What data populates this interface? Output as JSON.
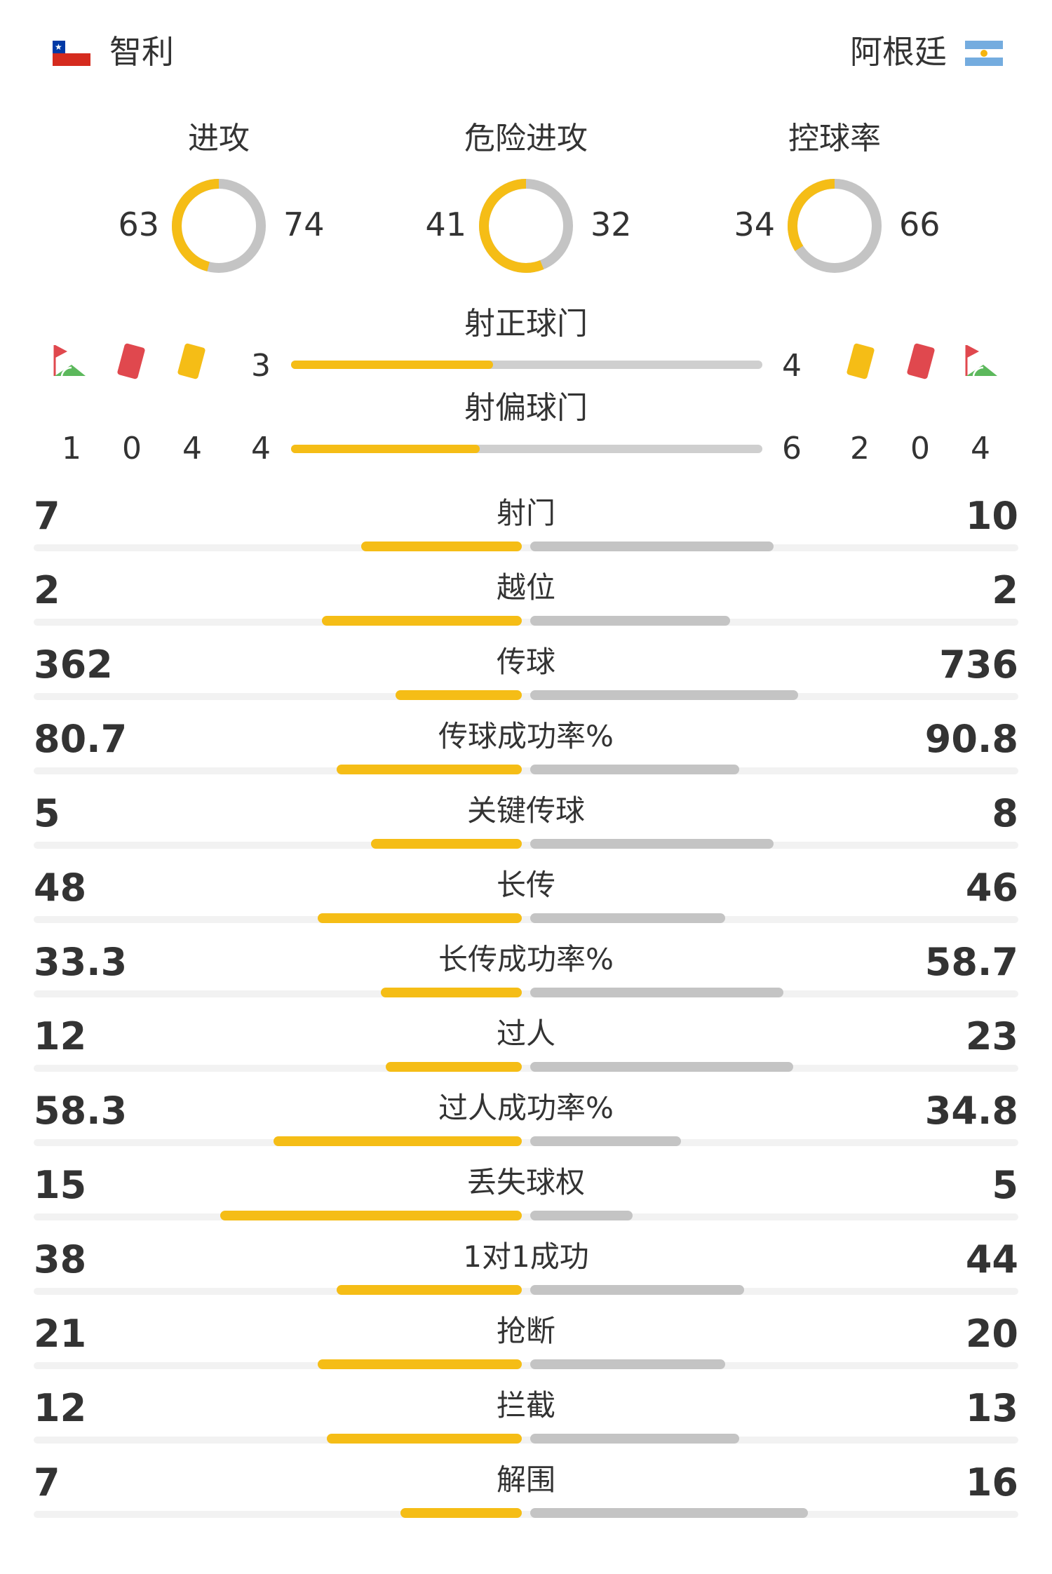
{
  "header": {
    "home_team": "智利",
    "away_team": "阿根廷"
  },
  "donuts": [
    {
      "title": "进攻",
      "home": "63",
      "away": "74",
      "home_value": 63,
      "away_value": 74
    },
    {
      "title": "危险进攻",
      "home": "41",
      "away": "32",
      "home_value": 41,
      "away_value": 32
    },
    {
      "title": "控球率",
      "home": "34",
      "away": "66",
      "home_value": 34,
      "away_value": 66
    }
  ],
  "shots": {
    "on_target": {
      "title": "射正球门",
      "home": "3",
      "away": "4",
      "home_value": 3,
      "away_value": 4
    },
    "off_target": {
      "title": "射偏球门",
      "home": "4",
      "away": "6",
      "home_value": 4,
      "away_value": 6
    }
  },
  "events": {
    "home": {
      "corners": "1",
      "red_cards": "0",
      "yellow_cards": "4"
    },
    "away": {
      "yellow_cards": "2",
      "red_cards": "0",
      "corners": "4"
    }
  },
  "icons": [
    "corner-flag-icon",
    "red-card-icon",
    "yellow-card-icon"
  ],
  "colors": {
    "home": "#f5bd16",
    "away": "#c4c4c4"
  },
  "stats": [
    {
      "label": "射门",
      "home": "7",
      "away": "10",
      "home_bar": 0.33,
      "away_bar": 0.5
    },
    {
      "label": "越位",
      "home": "2",
      "away": "2",
      "home_bar": 0.41,
      "away_bar": 0.41
    },
    {
      "label": "传球",
      "home": "362",
      "away": "736",
      "home_bar": 0.26,
      "away_bar": 0.55
    },
    {
      "label": "传球成功率%",
      "home": "80.7",
      "away": "90.8",
      "home_bar": 0.38,
      "away_bar": 0.43
    },
    {
      "label": "关键传球",
      "home": "5",
      "away": "8",
      "home_bar": 0.31,
      "away_bar": 0.5
    },
    {
      "label": "长传",
      "home": "48",
      "away": "46",
      "home_bar": 0.42,
      "away_bar": 0.4
    },
    {
      "label": "长传成功率%",
      "home": "33.3",
      "away": "58.7",
      "home_bar": 0.29,
      "away_bar": 0.52
    },
    {
      "label": "过人",
      "home": "12",
      "away": "23",
      "home_bar": 0.28,
      "away_bar": 0.54
    },
    {
      "label": "过人成功率%",
      "home": "58.3",
      "away": "34.8",
      "home_bar": 0.51,
      "away_bar": 0.31
    },
    {
      "label": "丢失球权",
      "home": "15",
      "away": "5",
      "home_bar": 0.62,
      "away_bar": 0.21
    },
    {
      "label": "1对1成功",
      "home": "38",
      "away": "44",
      "home_bar": 0.38,
      "away_bar": 0.44
    },
    {
      "label": "抢断",
      "home": "21",
      "away": "20",
      "home_bar": 0.42,
      "away_bar": 0.4
    },
    {
      "label": "拦截",
      "home": "12",
      "away": "13",
      "home_bar": 0.4,
      "away_bar": 0.43
    },
    {
      "label": "解围",
      "home": "7",
      "away": "16",
      "home_bar": 0.25,
      "away_bar": 0.57
    }
  ]
}
